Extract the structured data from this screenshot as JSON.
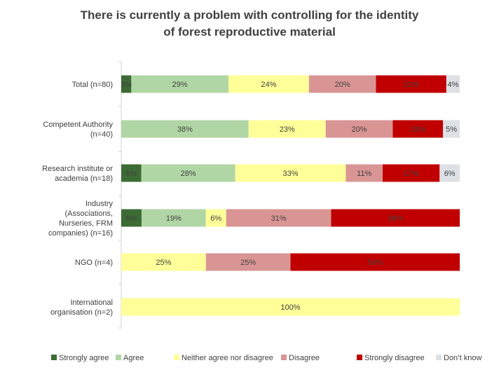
{
  "chart_data": {
    "type": "bar",
    "orientation": "horizontal",
    "stacked": "percent",
    "title": "There is currently a problem with controlling for the identity of forest reproductive material",
    "title_lines": [
      "There is currently a problem with controlling for the identity",
      "of forest reproductive material"
    ],
    "categories": [
      "Total (n=80)",
      "Competent Authority (n=40)",
      "Research institute or academia (n=18)",
      "Industry (Associations, Nurseries, FRM companies) (n=16)",
      "NGO (n=4)",
      "International organisation (n=2)"
    ],
    "category_lines": [
      [
        "Total (n=80)"
      ],
      [
        "Competent Authority",
        "(n=40)"
      ],
      [
        "Research institute or",
        "academia (n=18)"
      ],
      [
        "Industry",
        "(Associations,",
        "Nurseries, FRM",
        "companies) (n=16)"
      ],
      [
        "NGO (n=4)"
      ],
      [
        "International",
        "organisation (n=2)"
      ]
    ],
    "series": [
      {
        "name": "Strongly agree",
        "color": "#3d6b35",
        "values": [
          3,
          0,
          6,
          6,
          0,
          0
        ]
      },
      {
        "name": "Agree",
        "color": "#b1d6a5",
        "values": [
          29,
          38,
          28,
          19,
          0,
          0
        ]
      },
      {
        "name": "Neither agree nor disagree",
        "color": "#ffff99",
        "values": [
          24,
          23,
          33,
          6,
          25,
          100
        ]
      },
      {
        "name": "Disagree",
        "color": "#d99594",
        "values": [
          20,
          20,
          11,
          31,
          25,
          0
        ]
      },
      {
        "name": "Strongly disagree",
        "color": "#c00000",
        "values": [
          21,
          15,
          17,
          38,
          50,
          0
        ]
      },
      {
        "name": "Don’t know",
        "color": "#dde0e5",
        "values": [
          4,
          5,
          6,
          0,
          0,
          0
        ]
      }
    ],
    "value_suffix": "%",
    "legend": "bottom",
    "grid": false
  }
}
